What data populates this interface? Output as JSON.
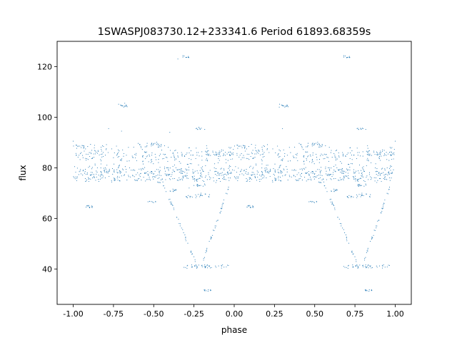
{
  "chart_data": {
    "type": "scatter",
    "title": "1SWASPJ083730.12+233341.6 Period 61893.68359s",
    "xlabel": "phase",
    "ylabel": "flux",
    "xlim": [
      -1.1,
      1.1
    ],
    "ylim": [
      26,
      130
    ],
    "xticks": [
      "-1.00",
      "-0.75",
      "-0.50",
      "-0.25",
      "0.00",
      "0.25",
      "0.50",
      "0.75",
      "1.00"
    ],
    "yticks": [
      "40",
      "60",
      "80",
      "100",
      "120"
    ],
    "grid": false,
    "legend": "none",
    "marker_color": "#1f77b4",
    "symmetric_about_zero": true,
    "series_description_points": [
      [
        -1.0,
        90.5
      ],
      [
        -0.98,
        85.0
      ],
      [
        -0.95,
        86.0
      ],
      [
        -0.92,
        83.0
      ],
      [
        -0.9,
        86.0
      ],
      [
        -0.88,
        76.0
      ],
      [
        -0.85,
        80.0
      ],
      [
        -0.8,
        85.0
      ],
      [
        -0.78,
        95.5
      ],
      [
        -0.75,
        84.0
      ],
      [
        -0.72,
        86.0
      ],
      [
        -0.7,
        94.5
      ],
      [
        -0.68,
        105.5
      ],
      [
        -0.65,
        80.0
      ],
      [
        -0.6,
        78.0
      ],
      [
        -0.55,
        86.0
      ],
      [
        -0.5,
        89.5
      ],
      [
        -0.45,
        87.0
      ],
      [
        -0.42,
        80.0
      ],
      [
        -0.4,
        94.0
      ],
      [
        -0.38,
        86.0
      ],
      [
        -0.35,
        123.0
      ],
      [
        -0.3,
        77.0
      ],
      [
        -0.28,
        72.0
      ],
      [
        -0.25,
        73.0
      ],
      [
        -0.22,
        96.0
      ],
      [
        -0.2,
        83.0
      ],
      [
        -0.18,
        41.0
      ],
      [
        -0.15,
        79.0
      ],
      [
        -0.12,
        85.0
      ],
      [
        -0.1,
        82.0
      ],
      [
        -0.08,
        77.0
      ],
      [
        -0.05,
        82.0
      ],
      [
        -0.02,
        88.0
      ],
      [
        0.0,
        79.0
      ],
      [
        0.05,
        84.0
      ],
      [
        0.08,
        64.5
      ],
      [
        0.1,
        76.0
      ],
      [
        0.15,
        87.0
      ],
      [
        0.2,
        81.0
      ],
      [
        0.25,
        77.0
      ],
      [
        0.28,
        104.0
      ],
      [
        0.3,
        95.5
      ],
      [
        0.35,
        86.0
      ],
      [
        0.4,
        78.0
      ],
      [
        0.45,
        83.0
      ],
      [
        0.48,
        66.5
      ],
      [
        0.5,
        89.5
      ],
      [
        0.55,
        85.0
      ],
      [
        0.6,
        86.0
      ],
      [
        0.65,
        79.0
      ],
      [
        0.68,
        41.0
      ],
      [
        0.7,
        123.5
      ],
      [
        0.75,
        78.0
      ],
      [
        0.78,
        73.5
      ],
      [
        0.8,
        95.5
      ],
      [
        0.82,
        31.5
      ],
      [
        0.85,
        82.0
      ],
      [
        0.88,
        76.0
      ],
      [
        0.9,
        84.0
      ],
      [
        0.95,
        80.0
      ],
      [
        0.98,
        88.0
      ],
      [
        1.0,
        90.5
      ]
    ]
  }
}
